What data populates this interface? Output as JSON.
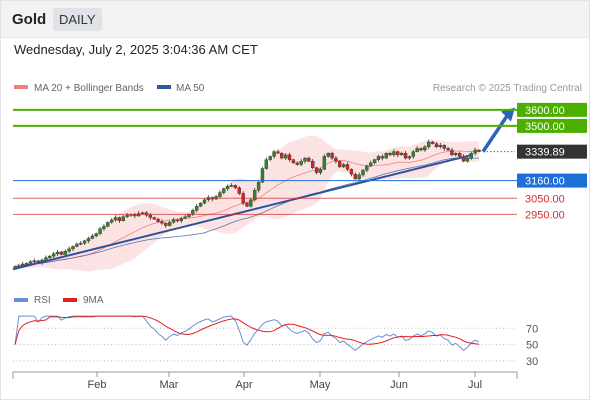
{
  "header": {
    "symbol": "Gold",
    "timeframe": "DAILY"
  },
  "timestamp": "Wednesday, July 2, 2025 3:04:36 AM CET",
  "legend": {
    "bollinger_label": "MA 20 + Bollinger Bands",
    "bollinger_color": "#f08080",
    "ma50_label": "MA 50",
    "ma50_color": "#2e5a9c",
    "credit": "Research © 2025 Trading Central"
  },
  "rsi_legend": {
    "rsi_label": "RSI",
    "rsi_color": "#6b8fd6",
    "ma_label": "9MA",
    "ma_color": "#e02020"
  },
  "chart_data": [
    {
      "type": "candlestick",
      "ylim": [
        2560,
        3680
      ],
      "x_tick_labels": [
        "Feb",
        "Mar",
        "Apr",
        "May",
        "Jun",
        "Jul"
      ],
      "price_levels": [
        {
          "label": "3600.00",
          "value": 3600,
          "color": "#4caf00",
          "kind": "target"
        },
        {
          "label": "3500.00",
          "value": 3500,
          "color": "#4caf00",
          "kind": "target"
        },
        {
          "label": "3339.89",
          "value": 3339.89,
          "color": "#333333",
          "kind": "last"
        },
        {
          "label": "3160.00",
          "value": 3160,
          "color": "#1e6fd9",
          "kind": "pivot"
        },
        {
          "label": "3050.00",
          "value": 3050,
          "color": "#d03030",
          "kind": "support"
        },
        {
          "label": "2950.00",
          "value": 2950,
          "color": "#d03030",
          "kind": "support"
        }
      ],
      "close_series": [
        2625,
        2630,
        2640,
        2645,
        2655,
        2660,
        2650,
        2665,
        2680,
        2690,
        2705,
        2715,
        2700,
        2720,
        2735,
        2750,
        2765,
        2770,
        2785,
        2800,
        2815,
        2830,
        2860,
        2875,
        2900,
        2915,
        2930,
        2910,
        2935,
        2945,
        2950,
        2940,
        2955,
        2960,
        2945,
        2930,
        2920,
        2905,
        2895,
        2880,
        2900,
        2915,
        2910,
        2925,
        2935,
        2950,
        2975,
        3000,
        3020,
        3040,
        3055,
        3045,
        3060,
        3085,
        3110,
        3125,
        3130,
        3115,
        3080,
        3020,
        3000,
        3040,
        3100,
        3150,
        3235,
        3290,
        3310,
        3340,
        3330,
        3300,
        3320,
        3290,
        3270,
        3260,
        3280,
        3300,
        3280,
        3240,
        3210,
        3230,
        3310,
        3330,
        3300,
        3280,
        3245,
        3260,
        3230,
        3200,
        3170,
        3195,
        3225,
        3250,
        3270,
        3290,
        3310,
        3300,
        3330,
        3320,
        3340,
        3320,
        3330,
        3300,
        3310,
        3340,
        3360,
        3350,
        3370,
        3400,
        3390,
        3370,
        3380,
        3360,
        3350,
        3320,
        3330,
        3310,
        3280,
        3300,
        3330,
        3350,
        3339.89
      ],
      "trendline": {
        "start": 2608,
        "end": 3318
      },
      "projection_arrow": {
        "from": 3340,
        "to": 3602
      }
    },
    {
      "type": "line",
      "title": "RSI",
      "y_tick_labels": [
        "70",
        "50",
        "30"
      ],
      "series": [
        {
          "name": "RSI"
        },
        {
          "name": "9MA"
        }
      ]
    }
  ]
}
